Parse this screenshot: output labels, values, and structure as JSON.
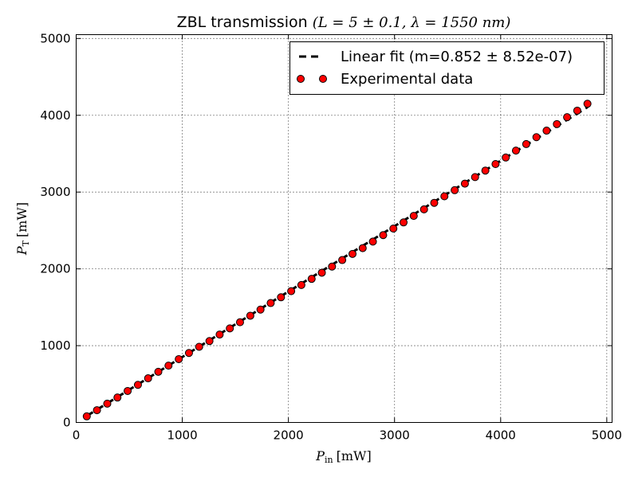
{
  "chart_data": {
    "type": "scatter",
    "title": {
      "plain": "ZBL transmission ",
      "math": "(L = 5 ± 0.1, λ = 1550 nm)"
    },
    "xlabel": {
      "main": "P",
      "sub": "in",
      "unit": "[mW]"
    },
    "ylabel": {
      "main": "P",
      "sub": "T",
      "unit": "[mW]"
    },
    "xlim": [
      0,
      5050
    ],
    "ylim": [
      0,
      5050
    ],
    "xticks": [
      0,
      1000,
      2000,
      3000,
      4000,
      5000
    ],
    "yticks": [
      0,
      1000,
      2000,
      3000,
      4000,
      5000
    ],
    "grid": true,
    "legend_position": "top-right",
    "colors": {
      "marker_fill": "#ff0000",
      "marker_edge": "#000000",
      "fit_line": "#000000",
      "axes": "#000000",
      "grid": "#000000"
    },
    "series": [
      {
        "name": "Linear fit (m=0.852 ± 8.52e-07)",
        "kind": "line",
        "style": "dashed",
        "x": [
          100,
          4820
        ],
        "y": [
          85.2,
          4106.6
        ]
      },
      {
        "name": "Experimental data",
        "kind": "scatter",
        "marker": "circle",
        "x": [
          100,
          196,
          293,
          389,
          485,
          582,
          678,
          774,
          870,
          967,
          1063,
          1159,
          1256,
          1352,
          1448,
          1544,
          1641,
          1737,
          1833,
          1930,
          2026,
          2122,
          2219,
          2315,
          2411,
          2507,
          2604,
          2700,
          2796,
          2893,
          2989,
          3085,
          3181,
          3278,
          3374,
          3470,
          3567,
          3663,
          3759,
          3856,
          3952,
          4048,
          4144,
          4241,
          4337,
          4433,
          4530,
          4626,
          4722,
          4818
        ],
        "y": [
          80,
          160,
          245,
          325,
          410,
          490,
          575,
          660,
          740,
          825,
          905,
          985,
          1060,
          1145,
          1225,
          1305,
          1390,
          1470,
          1555,
          1630,
          1710,
          1790,
          1870,
          1950,
          2030,
          2115,
          2195,
          2270,
          2355,
          2440,
          2525,
          2605,
          2690,
          2775,
          2860,
          2945,
          3025,
          3110,
          3195,
          3280,
          3365,
          3450,
          3540,
          3625,
          3715,
          3800,
          3885,
          3975,
          4060,
          4150
        ]
      }
    ]
  }
}
